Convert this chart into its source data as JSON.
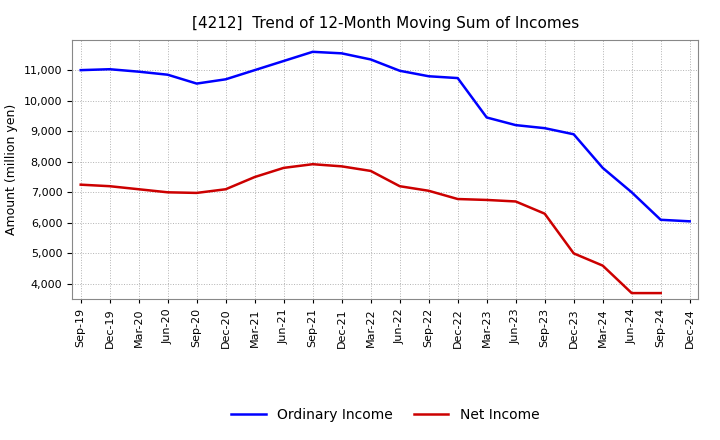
{
  "title": "[4212]  Trend of 12-Month Moving Sum of Incomes",
  "ylabel": "Amount (million yen)",
  "line_color_ordinary": "#0000FF",
  "line_color_net": "#CC0000",
  "legend_ordinary": "Ordinary Income",
  "legend_net": "Net Income",
  "background_color": "#FFFFFF",
  "grid_color": "#AAAAAA",
  "xlabels": [
    "Sep-19",
    "Dec-19",
    "Mar-20",
    "Jun-20",
    "Sep-20",
    "Dec-20",
    "Mar-21",
    "Jun-21",
    "Sep-21",
    "Dec-21",
    "Mar-22",
    "Jun-22",
    "Sep-22",
    "Dec-22",
    "Mar-23",
    "Jun-23",
    "Sep-23",
    "Dec-23",
    "Mar-24",
    "Jun-24",
    "Sep-24",
    "Dec-24"
  ],
  "ordinary_income": [
    11000,
    11030,
    10950,
    10850,
    10560,
    10700,
    11000,
    11300,
    11600,
    11550,
    11350,
    10980,
    10800,
    10740,
    9450,
    9200,
    9100,
    8900,
    7800,
    7000,
    6100,
    6050
  ],
  "net_income": [
    7250,
    7200,
    7100,
    7000,
    6980,
    7100,
    7500,
    7800,
    7920,
    7850,
    7700,
    7200,
    7050,
    6780,
    6750,
    6700,
    6300,
    5000,
    4600,
    3700,
    3700,
    null
  ],
  "ylim": [
    3500,
    12000
  ],
  "yticks": [
    4000,
    5000,
    6000,
    7000,
    8000,
    9000,
    10000,
    11000
  ],
  "title_fontsize": 11,
  "axis_fontsize": 9,
  "tick_fontsize": 8,
  "line_width": 1.8
}
